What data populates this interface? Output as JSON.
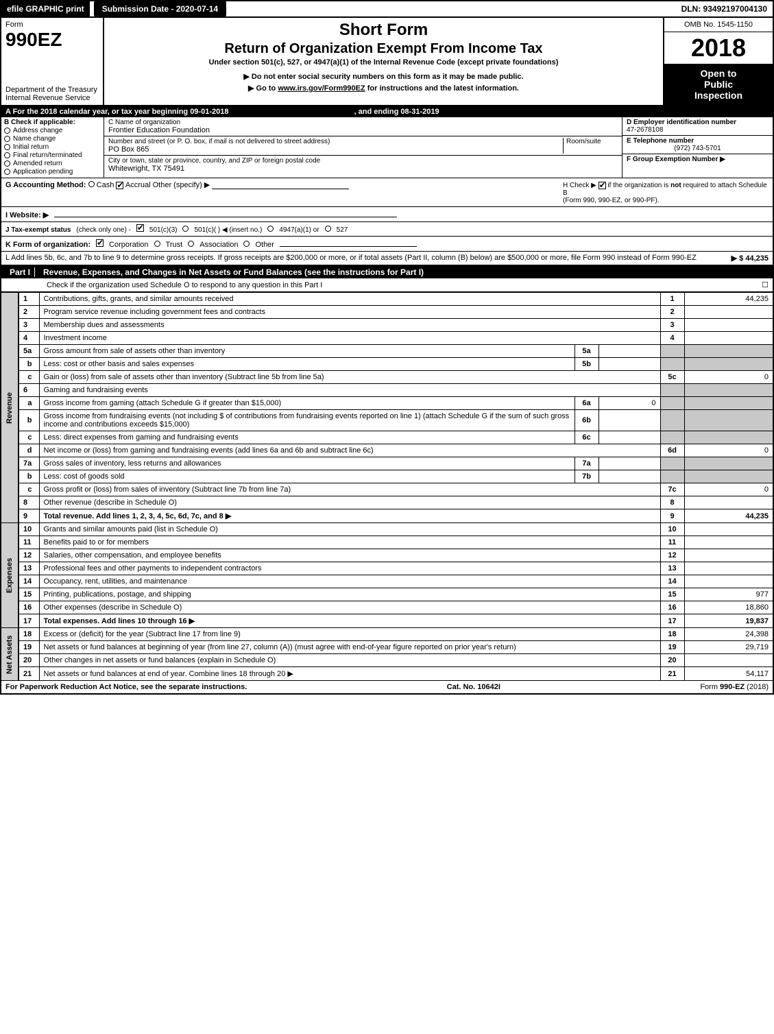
{
  "topbar": {
    "efile": "efile GRAPHIC print",
    "submission": "Submission Date - 2020-07-14",
    "dln": "DLN: 93492197004130"
  },
  "header": {
    "form_label": "Form",
    "form_number": "990EZ",
    "dept": "Department of the Treasury",
    "irs": "Internal Revenue Service",
    "short_form": "Short Form",
    "title": "Return of Organization Exempt From Income Tax",
    "subtitle": "Under section 501(c), 527, or 4947(a)(1) of the Internal Revenue Code (except private foundations)",
    "note": "▶ Do not enter social security numbers on this form as it may be made public.",
    "link_prefix": "▶ Go to ",
    "link_url": "www.irs.gov/Form990EZ",
    "link_suffix": " for instructions and the latest information.",
    "omb": "OMB No. 1545-1150",
    "year": "2018",
    "inspection1": "Open to",
    "inspection2": "Public",
    "inspection3": "Inspection"
  },
  "period": {
    "text_a": "A  For the 2018 calendar year, or tax year beginning 09-01-2018",
    "text_b": ", and ending 08-31-2019"
  },
  "section_b": {
    "header": "B  Check if applicable:",
    "items": [
      "Address change",
      "Name change",
      "Initial return",
      "Final return/terminated",
      "Amended return",
      "Application pending"
    ]
  },
  "section_c": {
    "name_label": "C Name of organization",
    "name": "Frontier Education Foundation",
    "street_label": "Number and street (or P. O. box, if mail is not delivered to street address)",
    "room_label": "Room/suite",
    "street": "PO Box 865",
    "city_label": "City or town, state or province, country, and ZIP or foreign postal code",
    "city": "Whitewright, TX  75491"
  },
  "section_d": {
    "ein_label": "D Employer identification number",
    "ein": "47-2678108",
    "phone_label": "E Telephone number",
    "phone": "(972) 743-5701",
    "group_label": "F Group Exemption Number  ▶"
  },
  "row_g": {
    "label": "G Accounting Method:",
    "cash": "Cash",
    "accrual": "Accrual",
    "other": "Other (specify) ▶"
  },
  "row_h": {
    "label": "H  Check ▶",
    "text1": "if the organization is ",
    "not": "not",
    "text2": " required to attach Schedule B",
    "text3": "(Form 990, 990-EZ, or 990-PF)."
  },
  "row_i": {
    "label": "I Website: ▶"
  },
  "row_j": {
    "label": "J Tax-exempt status",
    "hint": "(check only one) -",
    "opt1": "501(c)(3)",
    "opt2": "501(c)(  ) ◀ (insert no.)",
    "opt3": "4947(a)(1) or",
    "opt4": "527"
  },
  "row_k": {
    "label": "K Form of organization:",
    "opt1": "Corporation",
    "opt2": "Trust",
    "opt3": "Association",
    "opt4": "Other"
  },
  "row_l": {
    "text": "L Add lines 5b, 6c, and 7b to line 9 to determine gross receipts. If gross receipts are $200,000 or more, or if total assets (Part II, column (B) below) are $500,000 or more, file Form 990 instead of Form 990-EZ",
    "amount": "▶ $ 44,235"
  },
  "part1": {
    "label": "Part I",
    "title": "Revenue, Expenses, and Changes in Net Assets or Fund Balances (see the instructions for Part I)",
    "check_note": "Check if the organization used Schedule O to respond to any question in this Part I",
    "check_tail": "☐"
  },
  "sections": {
    "revenue": "Revenue",
    "expenses": "Expenses",
    "netassets": "Net Assets"
  },
  "lines": [
    {
      "n": "1",
      "desc": "Contributions, gifts, grants, and similar amounts received",
      "col": "1",
      "amt": "44,235"
    },
    {
      "n": "2",
      "desc": "Program service revenue including government fees and contracts",
      "col": "2",
      "amt": ""
    },
    {
      "n": "3",
      "desc": "Membership dues and assessments",
      "col": "3",
      "amt": ""
    },
    {
      "n": "4",
      "desc": "Investment income",
      "col": "4",
      "amt": ""
    },
    {
      "n": "5a",
      "desc": "Gross amount from sale of assets other than inventory",
      "mini": "5a",
      "minival": "",
      "grey": true
    },
    {
      "n": "b",
      "desc": "Less: cost or other basis and sales expenses",
      "mini": "5b",
      "minival": "",
      "grey": true,
      "sub": true
    },
    {
      "n": "c",
      "desc": "Gain or (loss) from sale of assets other than inventory (Subtract line 5b from line 5a)",
      "col": "5c",
      "amt": "0",
      "sub": true
    },
    {
      "n": "6",
      "desc": "Gaming and fundraising events",
      "grey": true,
      "noamt": true
    },
    {
      "n": "a",
      "desc": "Gross income from gaming (attach Schedule G if greater than $15,000)",
      "mini": "6a",
      "minival": "0",
      "grey": true,
      "sub": true
    },
    {
      "n": "b",
      "desc": "Gross income from fundraising events (not including $                    of contributions from fundraising events reported on line 1) (attach Schedule G if the sum of such gross income and contributions exceeds $15,000)",
      "mini": "6b",
      "minival": "",
      "grey": true,
      "sub": true
    },
    {
      "n": "c",
      "desc": "Less: direct expenses from gaming and fundraising events",
      "mini": "6c",
      "minival": "",
      "grey": true,
      "sub": true
    },
    {
      "n": "d",
      "desc": "Net income or (loss) from gaming and fundraising events (add lines 6a and 6b and subtract line 6c)",
      "col": "6d",
      "amt": "0",
      "sub": true
    },
    {
      "n": "7a",
      "desc": "Gross sales of inventory, less returns and allowances",
      "mini": "7a",
      "minival": "",
      "grey": true
    },
    {
      "n": "b",
      "desc": "Less: cost of goods sold",
      "mini": "7b",
      "minival": "",
      "grey": true,
      "sub": true
    },
    {
      "n": "c",
      "desc": "Gross profit or (loss) from sales of inventory (Subtract line 7b from line 7a)",
      "col": "7c",
      "amt": "0",
      "sub": true
    },
    {
      "n": "8",
      "desc": "Other revenue (describe in Schedule O)",
      "col": "8",
      "amt": ""
    },
    {
      "n": "9",
      "desc": "Total revenue. Add lines 1, 2, 3, 4, 5c, 6d, 7c, and 8",
      "col": "9",
      "amt": "44,235",
      "bold": true,
      "arrow": true
    },
    {
      "n": "10",
      "desc": "Grants and similar amounts paid (list in Schedule O)",
      "col": "10",
      "amt": "",
      "section": "expenses"
    },
    {
      "n": "11",
      "desc": "Benefits paid to or for members",
      "col": "11",
      "amt": ""
    },
    {
      "n": "12",
      "desc": "Salaries, other compensation, and employee benefits",
      "col": "12",
      "amt": ""
    },
    {
      "n": "13",
      "desc": "Professional fees and other payments to independent contractors",
      "col": "13",
      "amt": ""
    },
    {
      "n": "14",
      "desc": "Occupancy, rent, utilities, and maintenance",
      "col": "14",
      "amt": ""
    },
    {
      "n": "15",
      "desc": "Printing, publications, postage, and shipping",
      "col": "15",
      "amt": "977"
    },
    {
      "n": "16",
      "desc": "Other expenses (describe in Schedule O)",
      "col": "16",
      "amt": "18,860"
    },
    {
      "n": "17",
      "desc": "Total expenses. Add lines 10 through 16",
      "col": "17",
      "amt": "19,837",
      "bold": true,
      "arrow": true
    },
    {
      "n": "18",
      "desc": "Excess or (deficit) for the year (Subtract line 17 from line 9)",
      "col": "18",
      "amt": "24,398",
      "section": "netassets"
    },
    {
      "n": "19",
      "desc": "Net assets or fund balances at beginning of year (from line 27, column (A)) (must agree with end-of-year figure reported on prior year's return)",
      "col": "19",
      "amt": "29,719"
    },
    {
      "n": "20",
      "desc": "Other changes in net assets or fund balances (explain in Schedule O)",
      "col": "20",
      "amt": ""
    },
    {
      "n": "21",
      "desc": "Net assets or fund balances at end of year. Combine lines 18 through 20",
      "col": "21",
      "amt": "54,117",
      "arrow": true
    }
  ],
  "footer": {
    "left": "For Paperwork Reduction Act Notice, see the separate instructions.",
    "center": "Cat. No. 10642I",
    "right": "Form 990-EZ (2018)"
  },
  "colors": {
    "black": "#000000",
    "grey_cell": "#c8c8c8",
    "side_grey": "#d0d0d0",
    "white": "#ffffff"
  }
}
